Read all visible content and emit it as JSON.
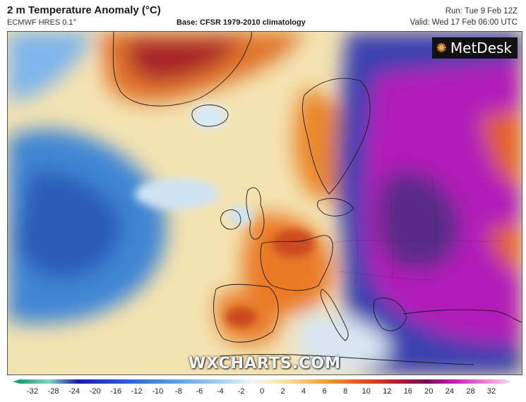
{
  "header": {
    "title": "2 m Temperature Anomaly (°C)",
    "model": "ECMWF HRES 0.1°",
    "base": "Base: CFSR 1979-2010 climatology",
    "run": "Run: Tue 9 Feb 12Z",
    "valid": "Valid: Wed 17 Feb 06:00 UTC"
  },
  "logo": {
    "text": "MetDesk",
    "icon": "metdesk-logo-icon"
  },
  "watermark": "WXCHARTS.COM",
  "legend": {
    "ticks": [
      "-32",
      "-28",
      "-24",
      "-20",
      "-16",
      "-12",
      "-10",
      "-8",
      "-6",
      "-4",
      "-2",
      "0",
      "2",
      "4",
      "6",
      "8",
      "10",
      "12",
      "16",
      "20",
      "24",
      "28",
      "32"
    ]
  },
  "colors": {
    "ocean_neutral": "#f3e6b8",
    "cold_blue": "#4a8fd6",
    "warm_orange": "#e98a2a",
    "hot_red": "#b3232e",
    "extreme_cold_magenta": "#b11fb8",
    "deep_purple": "#5a2a8a"
  }
}
